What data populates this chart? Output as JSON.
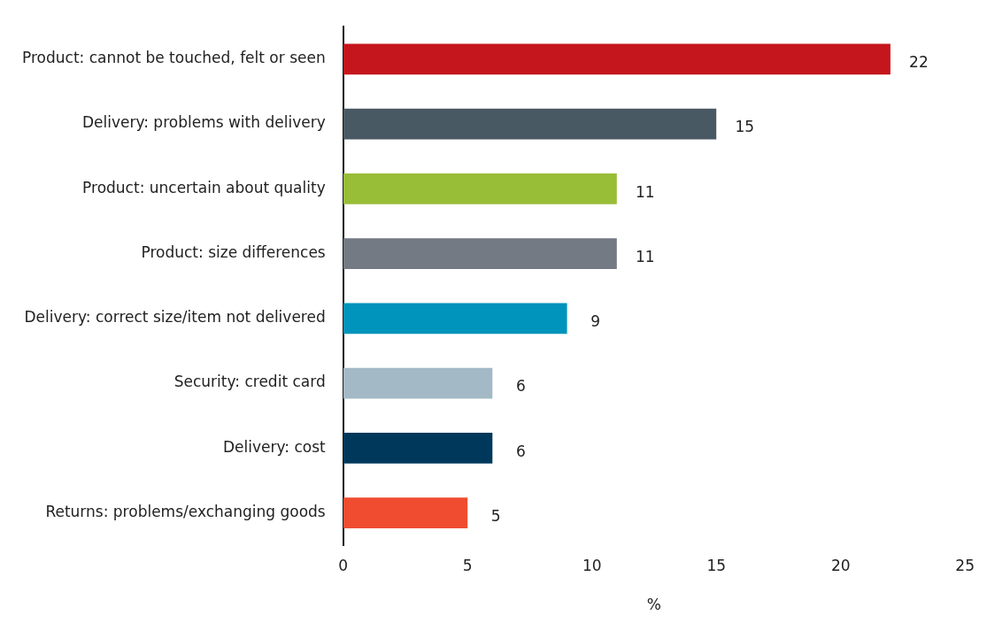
{
  "chart_data": {
    "type": "bar",
    "orientation": "horizontal",
    "xlabel": "%",
    "categories": [
      "Product: cannot be touched, felt or seen",
      "Delivery: problems with delivery",
      "Product: uncertain about quality",
      "Product: size differences",
      "Delivery: correct size/item not delivered",
      "Security: credit card",
      "Delivery: cost",
      "Returns: problems/exchanging goods"
    ],
    "values": [
      22,
      15,
      11,
      11,
      9,
      6,
      6,
      5
    ],
    "colors": [
      "#c4161c",
      "#495964",
      "#98bd37",
      "#737a84",
      "#0093bb",
      "#a3b9c5",
      "#00385b",
      "#ef4c30"
    ],
    "xlim": [
      0,
      25
    ],
    "xticks": [
      0,
      5,
      10,
      15,
      20,
      25
    ],
    "grid": false,
    "legend": false,
    "data_labels": true
  }
}
